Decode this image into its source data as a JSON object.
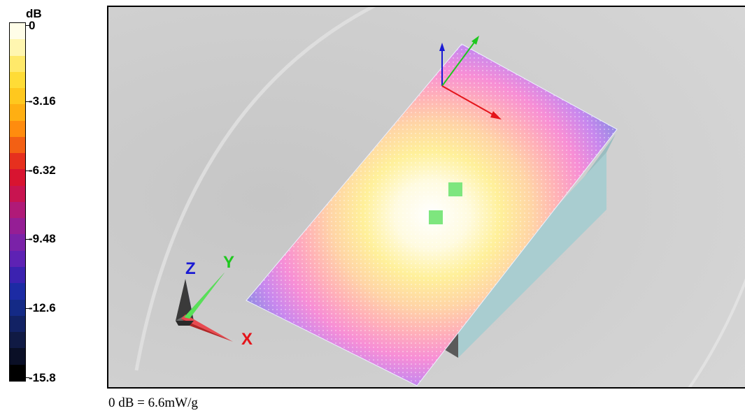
{
  "legend": {
    "unit": "dB",
    "ticks": [
      "0",
      "-3.16",
      "-6.32",
      "-9.48",
      "-12.6",
      "-15.8"
    ],
    "colors": [
      "#fffde8",
      "#fff6b0",
      "#ffe96a",
      "#ffdc36",
      "#ffc81e",
      "#ffaf12",
      "#ff8c0e",
      "#f36014",
      "#e6301e",
      "#d81430",
      "#c81450",
      "#b01a78",
      "#951e95",
      "#7a22a8",
      "#5e22b4",
      "#3b22b0",
      "#1c2ba4",
      "#142a86",
      "#122264",
      "#101a44",
      "#0a0f26",
      "#000000"
    ]
  },
  "axes": {
    "x": "X",
    "y": "Y",
    "z": "Z"
  },
  "caption": "0 dB = 6.6mW/g",
  "colors": {
    "x_axis": "#e4141a",
    "y_axis": "#1ec81e",
    "z_axis": "#1a1ad4",
    "marker": "#7ee67e",
    "block": "#a9cdd0"
  }
}
